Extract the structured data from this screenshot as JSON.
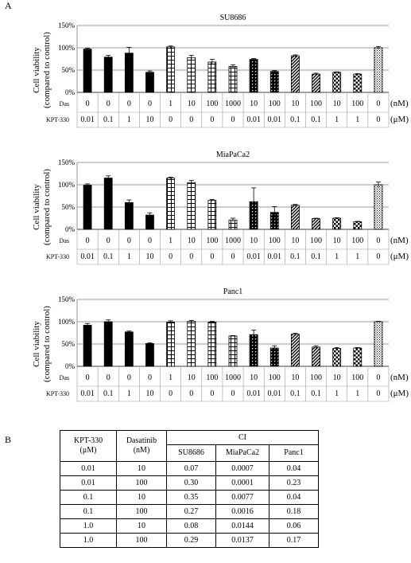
{
  "panel_a_label": "A",
  "panel_b_label": "B",
  "ylabel_line1": "Cell viability",
  "ylabel_line2": "(compared to control)",
  "das_row_label": "Das",
  "kpt_row_label": "KPT-330",
  "das_unit": "(nM)",
  "kpt_unit": "(μM)",
  "das_values": [
    "0",
    "0",
    "0",
    "0",
    "1",
    "10",
    "100",
    "1000",
    "10",
    "100",
    "10",
    "100",
    "10",
    "100",
    "0"
  ],
  "kpt_values": [
    "0.01",
    "0.1",
    "1",
    "10",
    "0",
    "0",
    "0",
    "0",
    "0.01",
    "0.01",
    "0.1",
    "0.1",
    "1",
    "1",
    "0"
  ],
  "chart_data": [
    {
      "type": "bar",
      "title": "SU8686",
      "ylim": [
        0,
        150
      ],
      "yticks": [
        "0%",
        "50%",
        "100%",
        "150%"
      ],
      "grid": true,
      "values": [
        97,
        79,
        88,
        45,
        102,
        78,
        68,
        58,
        74,
        47,
        82,
        41,
        45,
        41,
        100
      ],
      "errors": [
        2,
        4,
        13,
        3,
        2,
        5,
        6,
        4,
        2,
        2,
        2,
        2,
        1,
        1,
        3
      ]
    },
    {
      "type": "bar",
      "title": "MiaPaCa2",
      "ylim": [
        0,
        150
      ],
      "yticks": [
        "0%",
        "50%",
        "100%",
        "150%"
      ],
      "grid": true,
      "values": [
        99,
        115,
        60,
        32,
        115,
        105,
        65,
        21,
        62,
        38,
        54,
        24,
        25,
        17,
        100
      ],
      "errors": [
        3,
        5,
        6,
        5,
        2,
        5,
        2,
        4,
        31,
        13,
        2,
        1,
        1,
        1,
        6
      ]
    },
    {
      "type": "bar",
      "title": "Panc1",
      "ylim": [
        0,
        150
      ],
      "yticks": [
        "0%",
        "50%",
        "100%",
        "150%"
      ],
      "grid": true,
      "values": [
        92,
        100,
        77,
        51,
        99,
        101,
        99,
        68,
        71,
        41,
        72,
        43,
        40,
        41,
        100
      ],
      "errors": [
        4,
        4,
        2,
        2,
        3,
        2,
        2,
        1,
        10,
        5,
        2,
        3,
        2,
        1,
        1
      ]
    },
    {
      "type": "table",
      "header_kpt": "KPT-330 (μM)",
      "header_kpt_l1": "KPT-330",
      "header_kpt_l2": "(μM)",
      "header_das_l1": "Dasatinib",
      "header_das_l2": "(nM)",
      "header_ci": "CI",
      "columns": [
        "SU8686",
        "MiaPaCa2",
        "Panc1"
      ],
      "rows": [
        {
          "kpt": "0.01",
          "das": "10",
          "v": [
            "0.07",
            "0.0007",
            "0.04"
          ]
        },
        {
          "kpt": "0.01",
          "das": "100",
          "v": [
            "0.30",
            "0.0001",
            "0.23"
          ]
        },
        {
          "kpt": "0.1",
          "das": "10",
          "v": [
            "0.35",
            "0.0077",
            "0.04"
          ]
        },
        {
          "kpt": "0.1",
          "das": "100",
          "v": [
            "0.27",
            "0.0016",
            "0.18"
          ]
        },
        {
          "kpt": "1.0",
          "das": "10",
          "v": [
            "0.08",
            "0.0144",
            "0.06"
          ]
        },
        {
          "kpt": "1.0",
          "das": "100",
          "v": [
            "0.29",
            "0.0137",
            "0.17"
          ]
        }
      ]
    }
  ]
}
